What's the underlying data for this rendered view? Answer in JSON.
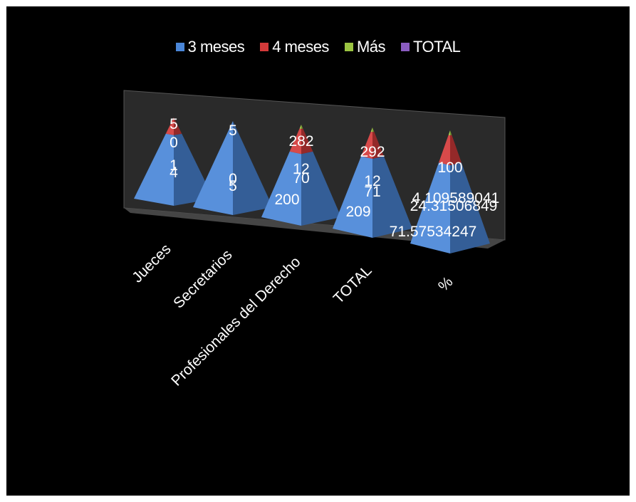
{
  "chart_data": {
    "type": "pyramid3d-stacked",
    "categories": [
      "Jueces",
      "Secretarios",
      "Profesionales del Derecho",
      "TOTAL",
      "%"
    ],
    "series": [
      {
        "name": "3 meses",
        "color": "#4a86d8",
        "values": [
          4,
          5,
          200,
          209,
          71.57534247
        ],
        "labels": [
          "4",
          "5",
          "200",
          "209",
          "71.57534247"
        ]
      },
      {
        "name": "4 meses",
        "color": "#d43a3a",
        "values": [
          1,
          0,
          70,
          71,
          24.31506849
        ],
        "labels": [
          "1",
          "0",
          "70",
          "71",
          "24.31506849"
        ]
      },
      {
        "name": "Más",
        "color": "#9bc441",
        "values": [
          0,
          0,
          12,
          12,
          4.109589041
        ],
        "labels": [
          "0",
          "",
          "12",
          "12",
          "4.109589041"
        ]
      },
      {
        "name": "TOTAL",
        "color": "#8a5cc0",
        "values": [
          5,
          5,
          282,
          292,
          100
        ],
        "labels": [
          "5",
          "5",
          "282",
          "292",
          "100"
        ]
      }
    ],
    "legend_position": "top",
    "background": "#000000",
    "text_color": "#ffffff",
    "wall_color": "#2a2a2a",
    "floor_color": "#454545"
  }
}
